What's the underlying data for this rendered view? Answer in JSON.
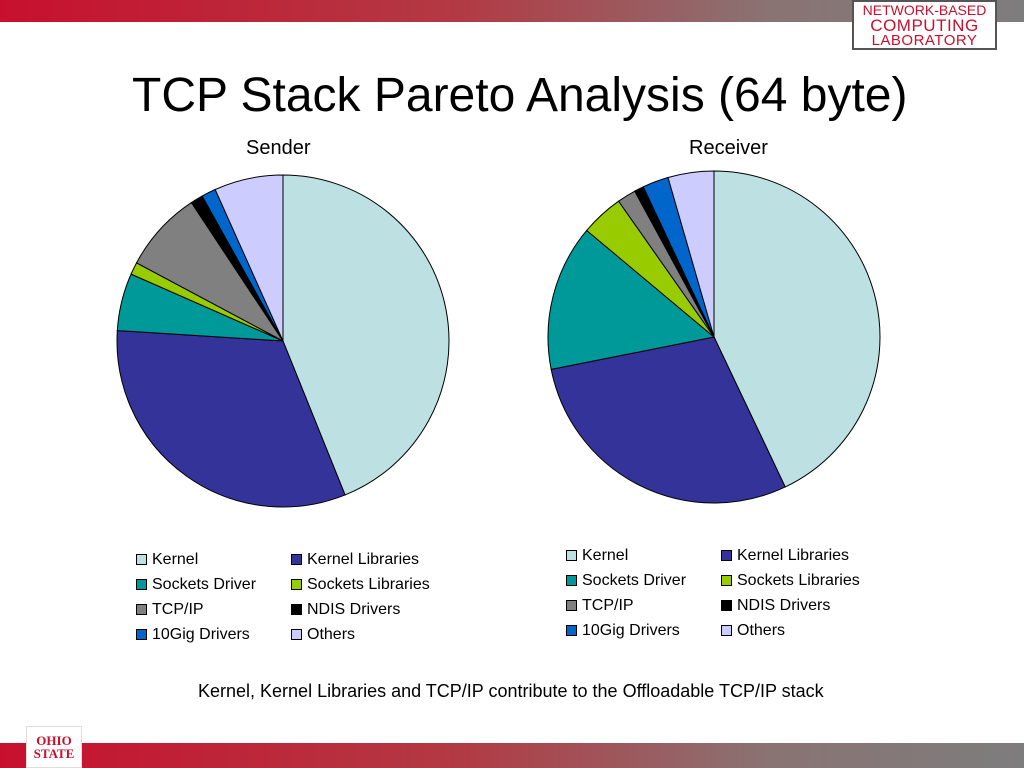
{
  "slide": {
    "title": "TCP Stack Pareto Analysis (64 byte)",
    "caption": "Kernel, Kernel Libraries and TCP/IP contribute to the Offloadable TCP/IP stack"
  },
  "lab_logo": {
    "line1": "NETWORK-BASED",
    "line2": "COMPUTING",
    "line3": "LABORATORY"
  },
  "osu_logo": {
    "line1": "OHIO",
    "line2": "STATE"
  },
  "colors": {
    "brand_red": "#c8102e",
    "Kernel": "#bde0e3",
    "Kernel Libraries": "#333399",
    "Sockets Driver": "#009999",
    "Sockets Libraries": "#99cc00",
    "TCP/IP": "#808080",
    "NDIS Drivers": "#000000",
    "10Gig Drivers": "#0066cc",
    "Others": "#ccccff"
  },
  "chart_data": [
    {
      "type": "pie",
      "title": "Sender",
      "categories": [
        "Kernel",
        "Kernel Libraries",
        "Sockets Driver",
        "Sockets Libraries",
        "TCP/IP",
        "NDIS Drivers",
        "10Gig Drivers",
        "Others"
      ],
      "values": [
        43.9,
        32.1,
        5.6,
        1.2,
        7.9,
        1.2,
        1.4,
        6.7
      ],
      "legend": "bottom",
      "start_angle_deg": 0,
      "direction": "clockwise"
    },
    {
      "type": "pie",
      "title": "Receiver",
      "categories": [
        "Kernel",
        "Kernel Libraries",
        "Sockets Driver",
        "Sockets Libraries",
        "TCP/IP",
        "NDIS Drivers",
        "10Gig Drivers",
        "Others"
      ],
      "values": [
        42.3,
        28.5,
        14.0,
        4.1,
        1.8,
        0.9,
        2.5,
        4.4
      ],
      "legend": "bottom",
      "start_angle_deg": 0,
      "direction": "clockwise"
    }
  ]
}
